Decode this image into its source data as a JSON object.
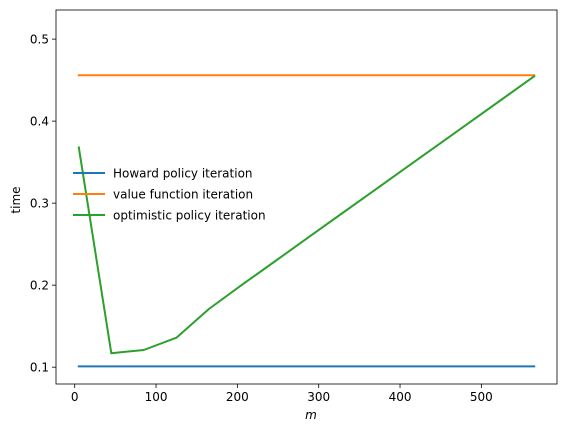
{
  "chart_data": {
    "type": "line",
    "xlabel": "m",
    "ylabel": "time",
    "xlim": [
      -23,
      593
    ],
    "ylim": [
      0.0795,
      0.5355
    ],
    "xticks": [
      0,
      100,
      200,
      300,
      400,
      500
    ],
    "yticks": [
      0.1,
      0.2,
      0.3,
      0.4,
      0.5
    ],
    "xtick_labels": [
      "0",
      "100",
      "200",
      "300",
      "400",
      "500"
    ],
    "ytick_labels": [
      "0.1",
      "0.2",
      "0.3",
      "0.4",
      "0.5"
    ],
    "grid": false,
    "legend_position": "center-left",
    "series": [
      {
        "name": "Howard policy iteration",
        "color": "#1f77b4",
        "x": [
          5,
          565
        ],
        "y": [
          0.101,
          0.101
        ]
      },
      {
        "name": "value function iteration",
        "color": "#ff7f0e",
        "x": [
          5,
          565
        ],
        "y": [
          0.456,
          0.456
        ]
      },
      {
        "name": "optimistic policy iteration",
        "color": "#2ca02c",
        "x": [
          5,
          45,
          85,
          125,
          165,
          205,
          245,
          285,
          325,
          365,
          405,
          445,
          485,
          525,
          565
        ],
        "y": [
          0.368,
          0.117,
          0.121,
          0.136,
          0.171,
          0.2,
          0.2283,
          0.2566,
          0.2849,
          0.3132,
          0.3415,
          0.3698,
          0.3981,
          0.4264,
          0.4547
        ]
      }
    ]
  }
}
